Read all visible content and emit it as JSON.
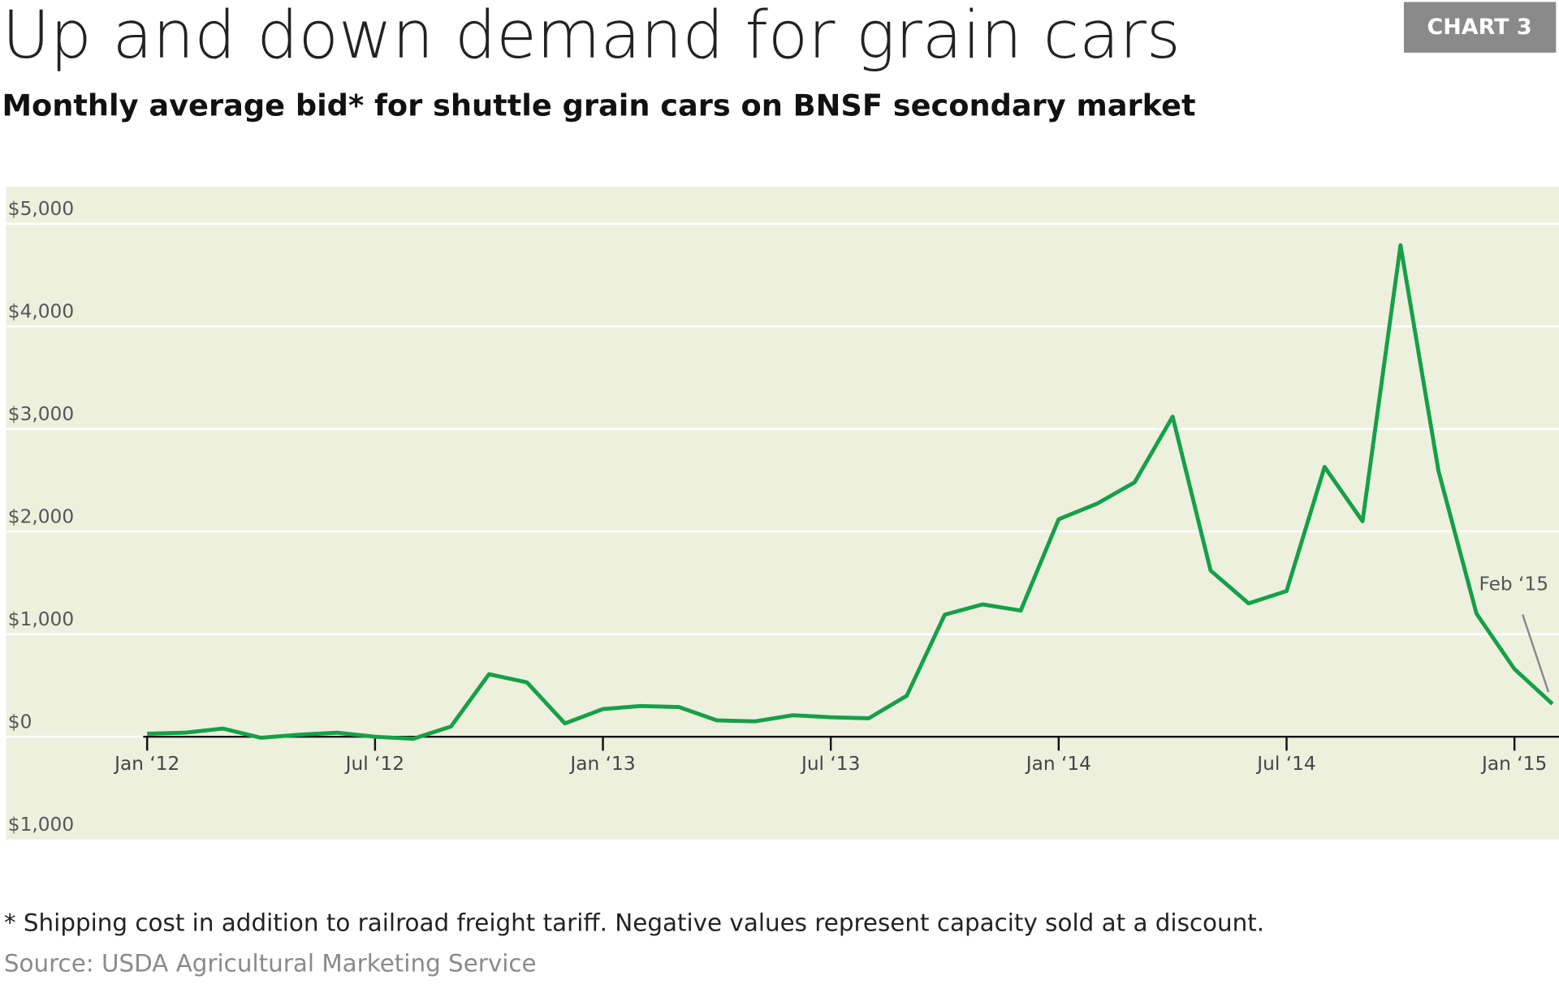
{
  "chart_data": {
    "type": "line",
    "title": "Up and down demand for grain cars",
    "subtitle": "Monthly average bid* for shuttle grain cars on BNSF secondary market",
    "badge": "CHART 3",
    "footnote": "* Shipping cost in addition to railroad freight tariff. Negative values represent capacity sold at a discount.",
    "source": "Source: USDA Agricultural Marketing Service",
    "annotation": "Feb ‘15",
    "categories": [
      "Jan ‘12",
      null,
      null,
      null,
      null,
      null,
      "Jul ‘12",
      null,
      null,
      null,
      null,
      null,
      "Jan ‘13",
      null,
      null,
      null,
      null,
      null,
      "Jul ‘13",
      null,
      null,
      null,
      null,
      null,
      "Jan ‘14",
      null,
      null,
      null,
      null,
      null,
      "Jul ‘14",
      null,
      null,
      null,
      null,
      null,
      "Jan ‘15",
      null
    ],
    "series": [
      {
        "color": "#14a048",
        "values": [
          30,
          40,
          80,
          -10,
          20,
          40,
          0,
          -20,
          100,
          610,
          530,
          130,
          270,
          300,
          290,
          160,
          150,
          210,
          190,
          180,
          400,
          1190,
          1290,
          1230,
          2120,
          2270,
          2480,
          3120,
          1620,
          1300,
          1420,
          2630,
          2100,
          4790,
          2590,
          1200,
          660,
          320
        ]
      }
    ],
    "ylim": [
      -1000,
      5360
    ],
    "yticks": [
      {
        "value": -1000,
        "label": "$1,000"
      },
      {
        "value": 0,
        "label": "$0"
      },
      {
        "value": 1000,
        "label": "$1,000"
      },
      {
        "value": 2000,
        "label": "$2,000"
      },
      {
        "value": 3000,
        "label": "$3,000"
      },
      {
        "value": 4000,
        "label": "$4,000"
      },
      {
        "value": 5000,
        "label": "$5,000"
      }
    ],
    "grid": true
  }
}
